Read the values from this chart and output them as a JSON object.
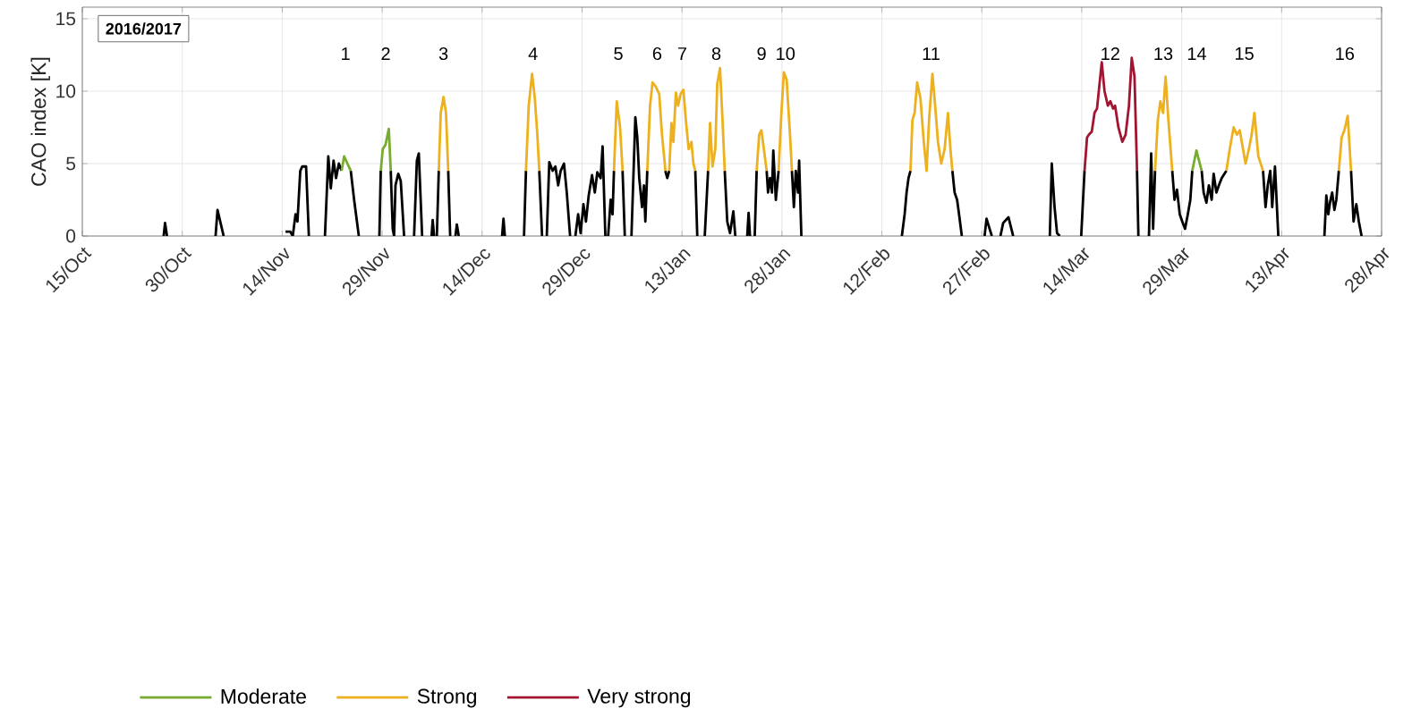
{
  "chart_data": {
    "type": "line",
    "ylabel": "CAO index [K]",
    "xlim": [
      "2016-10-15",
      "2017-04-28"
    ],
    "ylim": [
      0,
      15.8
    ],
    "xticks": [
      {
        "value": "2016-10-15",
        "label": "15/Oct"
      },
      {
        "value": "2016-10-30",
        "label": "30/Oct"
      },
      {
        "value": "2016-11-14",
        "label": "14/Nov"
      },
      {
        "value": "2016-11-29",
        "label": "29/Nov"
      },
      {
        "value": "2016-12-14",
        "label": "14/Dec"
      },
      {
        "value": "2016-12-29",
        "label": "29/Dec"
      },
      {
        "value": "2017-01-13",
        "label": "13/Jan"
      },
      {
        "value": "2017-01-28",
        "label": "28/Jan"
      },
      {
        "value": "2017-02-12",
        "label": "12/Feb"
      },
      {
        "value": "2017-02-27",
        "label": "27/Feb"
      },
      {
        "value": "2017-03-14",
        "label": "14/Mar"
      },
      {
        "value": "2017-03-29",
        "label": "29/Mar"
      },
      {
        "value": "2017-04-13",
        "label": "13/Apr"
      },
      {
        "value": "2017-04-28",
        "label": "28/Apr"
      }
    ],
    "yticks": [
      0,
      5,
      10,
      15
    ],
    "grid": true,
    "legend": "bottom",
    "series": [
      {
        "color": "#000000",
        "x": [
          "2016-10-27T05:00",
          "2016-10-27T10:00",
          "2016-10-27T17:00",
          null,
          "2016-11-04T00:00",
          "2016-11-04T07:00",
          "2016-11-05T05:00",
          null,
          "2016-11-14T12:00",
          "2016-11-15T05:00",
          "2016-11-15T14:00",
          "2016-11-16T00:00",
          "2016-11-16T07:00",
          "2016-11-16T17:00",
          "2016-11-17T00:00",
          "2016-11-17T14:00",
          "2016-11-18T00:00",
          null,
          "2016-11-20T10:00",
          "2016-11-20T22:00",
          "2016-11-21T07:00",
          "2016-11-21T17:00",
          "2016-11-22T02:00",
          "2016-11-22T12:00",
          "2016-11-22T22:00",
          null,
          "2016-11-24T07:00",
          "2016-11-24T19:00",
          "2016-11-25T12:00",
          null,
          "2016-11-28T14:00",
          "2016-11-28T19:00",
          null,
          "2016-11-30T07:00",
          "2016-11-30T14:00",
          "2016-11-30T19:00",
          "2016-12-01T00:00",
          "2016-12-01T10:00",
          "2016-12-01T19:00",
          "2016-12-02T07:00",
          null,
          "2016-12-03T19:00",
          "2016-12-04T05:00",
          "2016-12-04T12:00",
          "2016-12-05T00:00",
          null,
          "2016-12-06T10:00",
          "2016-12-06T14:00",
          "2016-12-06T19:00",
          null,
          "2016-12-07T05:00",
          "2016-12-07T12:00",
          null,
          "2016-12-08T22:00",
          "2016-12-09T05:00",
          null,
          "2016-12-10T00:00",
          "2016-12-10T05:00",
          "2016-12-10T12:00",
          null,
          "2016-12-17T00:00",
          "2016-12-17T05:00",
          "2016-12-17T10:00",
          null,
          "2016-12-20T07:00",
          "2016-12-20T14:00",
          null,
          "2016-12-22T14:00",
          "2016-12-23T00:00",
          null,
          "2016-12-23T17:00",
          "2016-12-24T02:00",
          "2016-12-24T14:00",
          "2016-12-25T00:00",
          "2016-12-25T10:00",
          "2016-12-25T19:00",
          "2016-12-26T07:00",
          "2016-12-26T17:00",
          "2016-12-27T05:00",
          null,
          "2016-12-28T00:00",
          "2016-12-28T10:00",
          "2016-12-28T19:00",
          "2016-12-29T05:00",
          "2016-12-29T14:00",
          "2016-12-30T00:00",
          "2016-12-30T12:00",
          "2016-12-30T22:00",
          "2016-12-31T07:00",
          "2016-12-31T19:00",
          "2017-01-01T02:00",
          "2017-01-01T12:00",
          null,
          "2017-01-01T22:00",
          "2017-01-02T07:00",
          "2017-01-02T14:00",
          "2017-01-02T19:00",
          null,
          "2017-01-04T02:00",
          "2017-01-04T10:00",
          null,
          "2017-01-05T10:00",
          "2017-01-06T00:00",
          "2017-01-06T07:00",
          "2017-01-06T14:00",
          "2017-01-07T00:00",
          "2017-01-07T07:00",
          "2017-01-07T12:00",
          "2017-01-07T19:00",
          null,
          "2017-01-10T12:00",
          "2017-01-10T19:00",
          "2017-01-11T02:00",
          null,
          "2017-01-15T00:00",
          "2017-01-15T07:00",
          null,
          "2017-01-16T10:00",
          "2017-01-16T22:00",
          null,
          "2017-01-19T10:00",
          "2017-01-19T19:00",
          "2017-01-20T05:00",
          "2017-01-20T17:00",
          "2017-01-21T00:00",
          null,
          "2017-01-22T19:00",
          "2017-01-23T00:00",
          "2017-01-23T05:00",
          null,
          "2017-01-23T22:00",
          "2017-01-24T05:00",
          null,
          "2017-01-25T17:00",
          "2017-01-25T22:00",
          "2017-01-26T05:00",
          "2017-01-26T12:00",
          "2017-01-26T17:00",
          "2017-01-27T02:00",
          "2017-01-27T12:00",
          null,
          "2017-01-29T12:00",
          "2017-01-29T19:00",
          "2017-01-30T02:00",
          "2017-01-30T10:00",
          "2017-01-30T14:00",
          "2017-01-30T22:00",
          null,
          "2017-02-15T00:00",
          "2017-02-15T10:00",
          "2017-02-15T17:00",
          "2017-02-16T00:00",
          "2017-02-16T07:00",
          null,
          "2017-02-22T14:00",
          "2017-02-22T22:00",
          "2017-02-23T07:00",
          "2017-02-23T14:00",
          "2017-02-24T00:00",
          null,
          "2017-02-27T10:00",
          "2017-02-27T17:00",
          "2017-02-28T12:00",
          null,
          "2017-03-01T19:00",
          "2017-03-02T05:00",
          "2017-03-03T00:00",
          "2017-03-03T17:00",
          null,
          "2017-03-09T05:00",
          "2017-03-09T12:00",
          "2017-03-09T22:00",
          "2017-03-10T07:00",
          "2017-03-10T17:00",
          null,
          "2017-03-13T22:00",
          "2017-03-14T10:00",
          null,
          "2017-03-22T07:00",
          "2017-03-22T12:00",
          null,
          "2017-03-24T02:00",
          "2017-03-24T10:00",
          "2017-03-24T17:00",
          "2017-03-25T00:00",
          null,
          "2017-03-27T14:00",
          "2017-03-27T22:00",
          "2017-03-28T07:00",
          "2017-03-28T17:00",
          "2017-03-29T02:00",
          "2017-03-29T12:00",
          "2017-03-29T22:00",
          "2017-03-30T07:00",
          "2017-03-30T14:00",
          null,
          "2017-04-01T00:00",
          "2017-04-01T07:00",
          "2017-04-01T17:00",
          "2017-04-02T02:00",
          "2017-04-02T12:00",
          "2017-04-02T19:00",
          "2017-04-03T05:00",
          "2017-04-03T14:00",
          "2017-04-04T00:00",
          "2017-04-04T17:00",
          null,
          "2017-04-10T05:00",
          "2017-04-10T14:00",
          "2017-04-10T22:00",
          "2017-04-11T07:00",
          "2017-04-11T14:00",
          "2017-04-12T00:00",
          "2017-04-12T12:00",
          null,
          "2017-04-19T10:00",
          "2017-04-19T17:00",
          "2017-04-20T00:00",
          "2017-04-20T07:00",
          "2017-04-20T14:00",
          "2017-04-20T22:00",
          "2017-04-21T05:00",
          "2017-04-21T14:00",
          null,
          "2017-04-23T10:00",
          "2017-04-23T19:00",
          "2017-04-24T05:00",
          "2017-04-24T14:00",
          "2017-04-25T00:00"
        ],
        "values": [
          0,
          0.9,
          0,
          null,
          0,
          1.8,
          0,
          null,
          0.3,
          0.3,
          0,
          1.5,
          1.0,
          4.5,
          4.8,
          4.8,
          0,
          null,
          0,
          5.5,
          3.3,
          5.2,
          4.0,
          5.0,
          4.5,
          null,
          4.5,
          2.5,
          0,
          null,
          0,
          4.5,
          null,
          4.5,
          0.5,
          0,
          3.5,
          4.3,
          3.8,
          0,
          null,
          0,
          5.2,
          5.7,
          0,
          null,
          0,
          1.1,
          0,
          null,
          0,
          4.5,
          null,
          4.5,
          0,
          null,
          0,
          0.8,
          0,
          null,
          0,
          1.2,
          0,
          null,
          0,
          4.5,
          null,
          4.5,
          0,
          null,
          0,
          5.1,
          4.5,
          4.8,
          3.5,
          4.5,
          5.0,
          3.0,
          0,
          null,
          0,
          1.5,
          0.2,
          2.2,
          1.0,
          2.8,
          4.2,
          3.0,
          4.4,
          4.0,
          6.2,
          0,
          null,
          0,
          2.5,
          1.5,
          4.5,
          null,
          4.5,
          0,
          null,
          0,
          8.2,
          6.8,
          4.0,
          2.0,
          3.5,
          1.0,
          4.5,
          null,
          4.5,
          4.0,
          4.5,
          null,
          4.5,
          0,
          null,
          0,
          4.5,
          null,
          4.5,
          1.0,
          0.2,
          1.7,
          0,
          null,
          0,
          1.6,
          0,
          null,
          0,
          4.5,
          null,
          4.5,
          3.0,
          4.0,
          3.0,
          5.9,
          2.5,
          4.5,
          null,
          4.5,
          2.0,
          4.5,
          3.0,
          5.2,
          0,
          null,
          0,
          1.5,
          3.0,
          4.0,
          4.5,
          null,
          4.5,
          3.0,
          2.5,
          1.5,
          0,
          null,
          0,
          1.2,
          0,
          null,
          0,
          0.9,
          1.3,
          0,
          null,
          0,
          5.0,
          2.0,
          0.2,
          0,
          null,
          0,
          4.5,
          null,
          4.5,
          0,
          null,
          0,
          5.7,
          0.5,
          4.5,
          null,
          4.5,
          2.5,
          3.2,
          1.5,
          1.0,
          0.5,
          1.5,
          2.5,
          4.5,
          null,
          4.5,
          3.0,
          2.3,
          3.5,
          2.5,
          4.3,
          3.0,
          3.5,
          4.0,
          4.5,
          null,
          4.5,
          2.0,
          3.5,
          4.5,
          2.0,
          4.8,
          0,
          null,
          0,
          2.8,
          1.5,
          2.4,
          3.0,
          1.8,
          2.5,
          4.5,
          null,
          4.5,
          1.0,
          2.2,
          1.0,
          0
        ]
      },
      {
        "name": "Moderate",
        "color": "#77ac30",
        "x": [
          "2016-11-22T22:00",
          "2016-11-23T07:00",
          "2016-11-24T07:00",
          null,
          "2016-11-28T19:00",
          "2016-11-29T02:00",
          "2016-11-29T12:00",
          "2016-11-30T00:00",
          "2016-11-30T07:00",
          null,
          "2017-03-30T14:00",
          "2017-03-31T05:00",
          "2017-04-01T00:00"
        ],
        "values": [
          4.5,
          5.5,
          4.5,
          null,
          4.5,
          6.0,
          6.3,
          7.4,
          4.5,
          null,
          4.5,
          5.9,
          4.5
        ]
      },
      {
        "name": "Strong",
        "color": "#edb120",
        "x": [
          "2016-12-07T12:00",
          "2016-12-07T19:00",
          "2016-12-08T05:00",
          "2016-12-08T14:00",
          "2016-12-08T22:00",
          null,
          "2016-12-20T14:00",
          "2016-12-21T00:00",
          "2016-12-21T12:00",
          "2016-12-21T22:00",
          "2016-12-22T07:00",
          "2016-12-22T14:00",
          null,
          "2017-01-02T19:00",
          "2017-01-03T05:00",
          "2017-01-03T17:00",
          "2017-01-04T02:00",
          null,
          "2017-01-07T19:00",
          "2017-01-08T05:00",
          "2017-01-08T14:00",
          "2017-01-09T02:00",
          "2017-01-09T14:00",
          "2017-01-10T00:00",
          "2017-01-10T10:00",
          "2017-01-10T12:00",
          null,
          "2017-01-11T02:00",
          "2017-01-11T10:00",
          "2017-01-11T17:00",
          "2017-01-12T02:00",
          "2017-01-12T10:00",
          "2017-01-12T19:00",
          "2017-01-13T05:00",
          "2017-01-13T14:00",
          "2017-01-14T00:00",
          "2017-01-14T10:00",
          "2017-01-14T17:00",
          "2017-01-15T00:00",
          null,
          "2017-01-16T22:00",
          "2017-01-17T05:00",
          "2017-01-17T14:00",
          "2017-01-18T00:00",
          "2017-01-18T07:00",
          "2017-01-18T17:00",
          "2017-01-19T02:00",
          "2017-01-19T10:00",
          null,
          "2017-01-24T05:00",
          "2017-01-24T14:00",
          "2017-01-24T22:00",
          "2017-01-25T07:00",
          "2017-01-25T17:00",
          null,
          "2017-01-27T12:00",
          "2017-01-27T22:00",
          "2017-01-28T07:00",
          "2017-01-28T17:00",
          "2017-01-29T05:00",
          "2017-01-29T12:00",
          null,
          "2017-02-16T07:00",
          "2017-02-16T14:00",
          "2017-02-16T22:00",
          "2017-02-17T07:00",
          "2017-02-17T19:00",
          "2017-02-18T07:00",
          "2017-02-18T17:00",
          "2017-02-19T02:00",
          "2017-02-19T14:00",
          "2017-02-20T00:00",
          "2017-02-20T10:00",
          "2017-02-20T22:00",
          "2017-02-21T10:00",
          "2017-02-21T22:00",
          "2017-02-22T07:00",
          "2017-02-22T14:00",
          null,
          "2017-03-25T00:00",
          "2017-03-25T10:00",
          "2017-03-25T19:00",
          "2017-03-26T05:00",
          "2017-03-26T14:00",
          "2017-03-27T00:00",
          "2017-03-27T14:00",
          null,
          "2017-04-04T17:00",
          "2017-04-05T05:00",
          "2017-04-05T19:00",
          "2017-04-06T07:00",
          "2017-04-06T17:00",
          "2017-04-07T05:00",
          "2017-04-07T14:00",
          "2017-04-08T02:00",
          "2017-04-08T12:00",
          "2017-04-08T22:00",
          "2017-04-09T12:00",
          "2017-04-10T05:00",
          null,
          "2017-04-21T14:00",
          "2017-04-22T00:00",
          "2017-04-22T10:00",
          "2017-04-22T22:00",
          "2017-04-23T10:00"
        ],
        "values": [
          4.5,
          8.5,
          9.6,
          8.5,
          4.5,
          null,
          4.5,
          9.0,
          11.2,
          9.5,
          7.0,
          4.5,
          null,
          4.5,
          9.3,
          7.5,
          4.5,
          null,
          4.5,
          9.0,
          10.6,
          10.3,
          9.8,
          7.0,
          5.0,
          4.5,
          null,
          4.5,
          7.8,
          6.5,
          9.9,
          9.0,
          9.8,
          10.1,
          8.0,
          6.0,
          6.5,
          5.0,
          4.5,
          null,
          4.5,
          7.8,
          4.8,
          6.0,
          10.5,
          11.6,
          8.0,
          4.5,
          null,
          4.5,
          7.0,
          7.3,
          6.0,
          4.5,
          null,
          4.5,
          8.5,
          11.3,
          10.8,
          7.0,
          4.5,
          null,
          4.5,
          8.0,
          8.5,
          10.6,
          9.5,
          6.5,
          4.5,
          8.0,
          11.2,
          9.0,
          6.5,
          5.0,
          6.0,
          8.5,
          6.0,
          4.5,
          null,
          4.5,
          8.0,
          9.3,
          8.5,
          11.0,
          8.0,
          4.5,
          null,
          4.5,
          6.0,
          7.5,
          7.0,
          7.3,
          6.0,
          5.0,
          6.0,
          7.0,
          8.5,
          5.5,
          4.5,
          null,
          4.5,
          6.8,
          7.3,
          8.3,
          4.5
        ]
      },
      {
        "name": "Very strong",
        "color": "#a2142f",
        "x": [
          "2017-03-14T10:00",
          "2017-03-14T19:00",
          "2017-03-15T02:00",
          "2017-03-15T12:00",
          "2017-03-15T22:00",
          "2017-03-16T07:00",
          "2017-03-17T00:00",
          "2017-03-17T10:00",
          "2017-03-17T22:00",
          "2017-03-18T07:00",
          "2017-03-18T17:00",
          "2017-03-19T00:00",
          "2017-03-19T12:00",
          "2017-03-20T02:00",
          "2017-03-20T14:00",
          "2017-03-21T02:00",
          "2017-03-21T12:00",
          "2017-03-21T22:00",
          "2017-03-22T07:00"
        ],
        "values": [
          4.5,
          6.8,
          7.0,
          7.2,
          8.5,
          8.8,
          12.0,
          10.0,
          9.0,
          9.3,
          8.8,
          9.0,
          7.5,
          6.5,
          7.0,
          9.0,
          12.3,
          11.0,
          4.5
        ]
      }
    ],
    "annotations": [
      "2016/2017",
      "1",
      "2",
      "3",
      "4",
      "5",
      "6",
      "7",
      "8",
      "9",
      "10",
      "11",
      "12",
      "13",
      "14",
      "15",
      "16"
    ]
  }
}
